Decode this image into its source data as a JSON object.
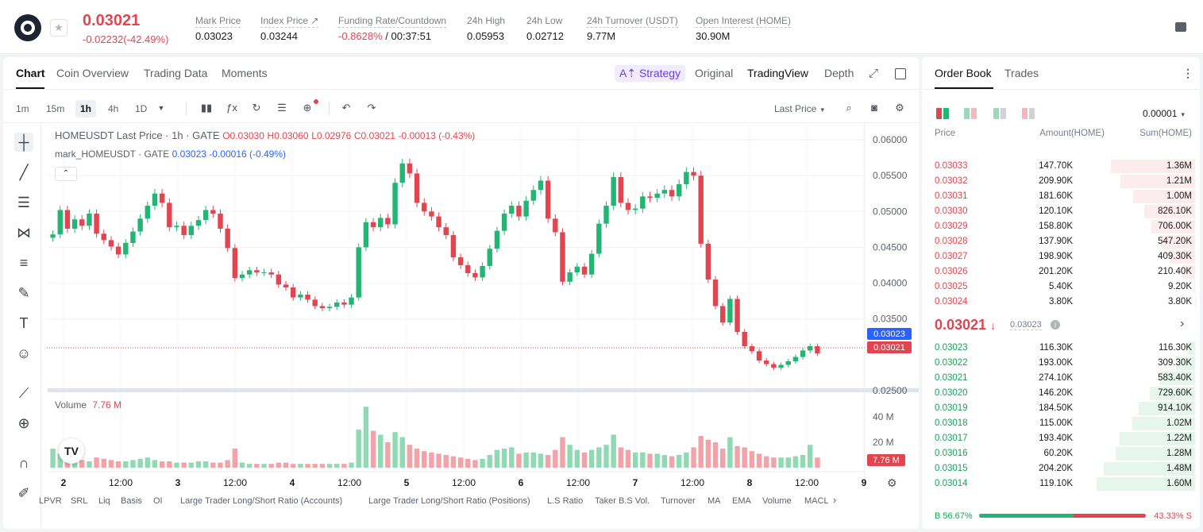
{
  "header": {
    "last_price": "0.03021",
    "change": "-0.02232(-42.49%)",
    "stats": [
      {
        "label": "Mark Price",
        "value": "0.03023"
      },
      {
        "label": "Index Price ↗",
        "value": "0.03244"
      },
      {
        "label": "Funding Rate/Countdown",
        "value_red": "-0.8628%",
        "value": " / 00:37:51"
      },
      {
        "label": "24h High",
        "value": "0.05953"
      },
      {
        "label": "24h Low",
        "value": "0.02712"
      },
      {
        "label": "24h Turnover (USDT)",
        "value": "9.77M"
      },
      {
        "label": "Open Interest (HOME)",
        "value": "30.90M"
      }
    ]
  },
  "chart_tabs": [
    "Chart",
    "Coin Overview",
    "Trading Data",
    "Moments"
  ],
  "view_tabs": {
    "strategy": "A⇡ Strategy",
    "original": "Original",
    "tradingview": "TradingView",
    "depth": "Depth"
  },
  "intervals": [
    "1m",
    "15m",
    "1h",
    "4h",
    "1D"
  ],
  "price_type": "Last Price",
  "legend": {
    "main": "HOMEUSDT Last Price · 1h · GATE",
    "o": "O0.03030",
    "h": "H0.03060",
    "l": "L0.02976",
    "c": "C0.03021",
    "chg": "-0.00013 (-0.43%)",
    "mark": "mark_HOMEUSDT · GATE",
    "mark_val": "0.03023 -0.00016 (-0.49%)",
    "volume": "Volume",
    "volume_val": "7.76 M"
  },
  "price_axis": [
    "0.06000",
    "0.05500",
    "0.05000",
    "0.04500",
    "0.04000",
    "0.03500",
    "0.02500"
  ],
  "price_tags": {
    "mark": "0.03023",
    "last": "0.03021"
  },
  "vol_axis": [
    "40 M",
    "20 M"
  ],
  "vol_tag": "7.76 M",
  "time_axis": [
    "2",
    "12:00",
    "3",
    "12:00",
    "4",
    "12:00",
    "5",
    "12:00",
    "6",
    "12:00",
    "7",
    "12:00",
    "8",
    "12:00",
    "9"
  ],
  "indicators": [
    "LPVR",
    "SRL",
    "Liq",
    "Basis",
    "OI",
    "Large Trader Long/Short Ratio (Accounts)",
    "Large Trader Long/Short Ratio (Positions)",
    "L.S Ratio",
    "Taker B.S Vol.",
    "Turnover",
    "MA",
    "EMA",
    "Volume",
    "MACL"
  ],
  "colors": {
    "up": "#22b573",
    "down": "#e2454f",
    "accent": "#6a3cf0"
  },
  "chart_data": {
    "type": "candlestick",
    "interval": "1h",
    "ylim": [
      0.025,
      0.061
    ],
    "closes": [
      0.0468,
      0.0502,
      0.0476,
      0.0489,
      0.048,
      0.0497,
      0.0469,
      0.046,
      0.0451,
      0.044,
      0.0456,
      0.0472,
      0.049,
      0.0508,
      0.0525,
      0.0512,
      0.0478,
      0.048,
      0.0467,
      0.048,
      0.0488,
      0.0502,
      0.0497,
      0.0476,
      0.0449,
      0.0407,
      0.0412,
      0.0418,
      0.0415,
      0.0415,
      0.0412,
      0.0398,
      0.0394,
      0.038,
      0.0384,
      0.0377,
      0.0368,
      0.0365,
      0.0367,
      0.0373,
      0.037,
      0.038,
      0.045,
      0.0485,
      0.0478,
      0.0491,
      0.0482,
      0.054,
      0.0567,
      0.0553,
      0.0512,
      0.05,
      0.0493,
      0.0478,
      0.0467,
      0.0436,
      0.0425,
      0.0414,
      0.0408,
      0.0424,
      0.0448,
      0.0473,
      0.0497,
      0.0508,
      0.0493,
      0.0515,
      0.053,
      0.0543,
      0.049,
      0.0471,
      0.0402,
      0.0415,
      0.0423,
      0.0412,
      0.0441,
      0.0483,
      0.0508,
      0.0548,
      0.0512,
      0.0502,
      0.0504,
      0.0521,
      0.0519,
      0.0525,
      0.053,
      0.0521,
      0.0538,
      0.0555,
      0.055,
      0.0455,
      0.0405,
      0.0368,
      0.0345,
      0.0378,
      0.0332,
      0.0312,
      0.0305,
      0.0292,
      0.0287,
      0.0282,
      0.0286,
      0.0291,
      0.0297,
      0.0306,
      0.0312,
      0.0302
    ],
    "volumes": [
      15,
      11,
      9,
      7,
      6,
      5,
      8,
      7,
      6,
      5,
      5,
      6,
      7,
      8,
      6,
      5,
      5,
      4,
      4,
      4,
      5,
      5,
      4,
      4,
      6,
      15,
      4,
      3,
      3,
      3,
      3,
      4,
      4,
      3,
      3,
      3,
      3,
      3,
      3,
      3,
      3,
      4,
      30,
      48,
      29,
      26,
      20,
      28,
      24,
      18,
      15,
      13,
      12,
      11,
      10,
      9,
      8,
      7,
      6,
      7,
      10,
      14,
      15,
      16,
      11,
      12,
      12,
      11,
      10,
      14,
      24,
      18,
      14,
      12,
      14,
      16,
      18,
      26,
      16,
      14,
      12,
      12,
      11,
      11,
      10,
      9,
      10,
      12,
      16,
      25,
      22,
      20,
      15,
      24,
      17,
      16,
      13,
      11,
      9,
      8,
      8,
      8,
      9,
      10,
      18,
      8
    ]
  },
  "orderbook": {
    "tabs": [
      "Order Book",
      "Trades"
    ],
    "precision": "0.00001",
    "headers": [
      "Price",
      "Amount(HOME)",
      "Sum(HOME)"
    ],
    "asks": [
      {
        "p": "0.03033",
        "a": "147.70K",
        "s": "1.36M"
      },
      {
        "p": "0.03032",
        "a": "209.90K",
        "s": "1.21M"
      },
      {
        "p": "0.03031",
        "a": "181.60K",
        "s": "1.00M"
      },
      {
        "p": "0.03030",
        "a": "120.10K",
        "s": "826.10K"
      },
      {
        "p": "0.03029",
        "a": "158.80K",
        "s": "706.00K"
      },
      {
        "p": "0.03028",
        "a": "137.90K",
        "s": "547.20K"
      },
      {
        "p": "0.03027",
        "a": "198.90K",
        "s": "409.30K"
      },
      {
        "p": "0.03026",
        "a": "201.20K",
        "s": "210.40K"
      },
      {
        "p": "0.03025",
        "a": "5.40K",
        "s": "9.20K"
      },
      {
        "p": "0.03024",
        "a": "3.80K",
        "s": "3.80K"
      }
    ],
    "last": "0.03021",
    "mark": "0.03023",
    "bids": [
      {
        "p": "0.03023",
        "a": "116.30K",
        "s": "116.30K"
      },
      {
        "p": "0.03022",
        "a": "193.00K",
        "s": "309.30K"
      },
      {
        "p": "0.03021",
        "a": "274.10K",
        "s": "583.40K"
      },
      {
        "p": "0.03020",
        "a": "146.20K",
        "s": "729.60K"
      },
      {
        "p": "0.03019",
        "a": "184.50K",
        "s": "914.10K"
      },
      {
        "p": "0.03018",
        "a": "115.00K",
        "s": "1.02M"
      },
      {
        "p": "0.03017",
        "a": "193.40K",
        "s": "1.22M"
      },
      {
        "p": "0.03016",
        "a": "60.20K",
        "s": "1.28M"
      },
      {
        "p": "0.03015",
        "a": "204.20K",
        "s": "1.48M"
      },
      {
        "p": "0.03014",
        "a": "119.10K",
        "s": "1.60M"
      }
    ],
    "buy_pct": "B 56.67%",
    "sell_pct": "43.33% S",
    "buy_ratio": 0.5667
  }
}
